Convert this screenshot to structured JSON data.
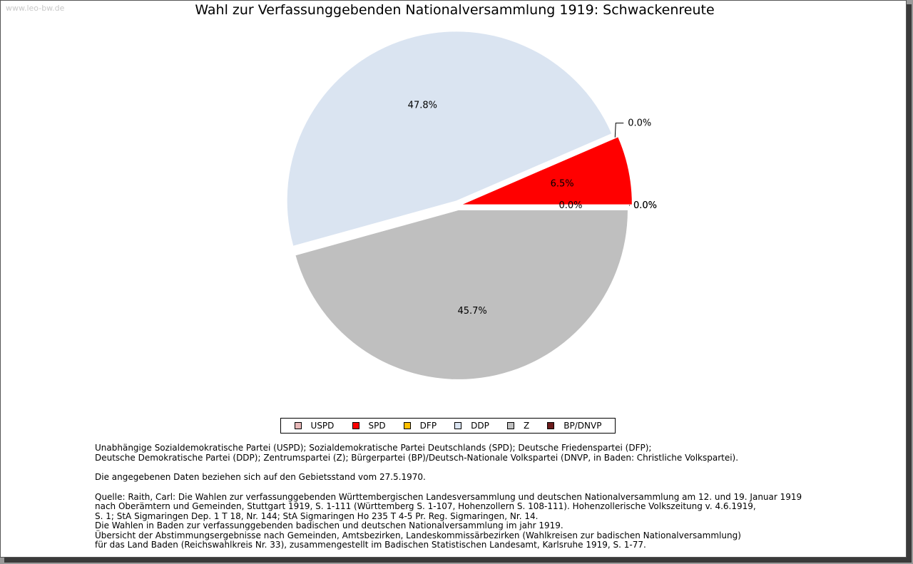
{
  "watermark": "www.leo-bw.de",
  "chart_data": {
    "type": "pie",
    "title": "Wahl zur Verfassunggebenden Nationalversammlung 1919: Schwackenreute",
    "slices": [
      {
        "name": "USPD",
        "value": 0.0,
        "label": "0.0%",
        "color": "#e8b8b8"
      },
      {
        "name": "SPD",
        "value": 6.5,
        "label": "6.5%",
        "color": "#ff0000"
      },
      {
        "name": "DFP",
        "value": 0.0,
        "label": "0.0%",
        "color": "#ffc000"
      },
      {
        "name": "DDP",
        "value": 47.8,
        "label": "47.8%",
        "color": "#dae4f1"
      },
      {
        "name": "Z",
        "value": 45.7,
        "label": "45.7%",
        "color": "#bfbfbf"
      },
      {
        "name": "BP/DNVP",
        "value": 0.0,
        "label": "0.0%",
        "color": "#6b1c1c"
      }
    ],
    "legend_position": "bottom"
  },
  "notes": {
    "line1": "Unabhängige Sozialdemokratische Partei (USPD); Sozialdemokratische Partei Deutschlands (SPD); Deutsche Friedenspartei (DFP);",
    "line2": "Deutsche Demokratische Partei (DDP); Zentrumspartei (Z); Bürgerpartei (BP)/Deutsch-Nationale Volkspartei (DNVP, in Baden: Christliche Volkspartei).",
    "line3": "Die angegebenen Daten beziehen sich auf den Gebietsstand vom 27.5.1970.",
    "line4": "Quelle: Raith, Carl: Die Wahlen zur verfassunggebenden Württembergischen Landesversammlung und deutschen Nationalversammlung am 12. und 19. Januar 1919",
    "line5": "nach Oberämtern und Gemeinden, Stuttgart 1919, S. 1-111 (Württemberg S. 1-107, Hohenzollern S. 108-111). Hohenzollerische Volkszeitung v. 4.6.1919,",
    "line6": "S. 1; StA Sigmaringen Dep. 1 T 18, Nr. 144; StA Sigmaringen Ho 235 T 4-5 Pr. Reg. Sigmaringen, Nr. 14.",
    "line7": "Die Wahlen in Baden zur verfassunggebenden badischen und deutschen Nationalversammlung im jahr 1919.",
    "line8": "Übersicht der Abstimmungsergebnisse nach Gemeinden, Amtsbezirken, Landeskommissärbezirken (Wahlkreisen zur badischen Nationalversammlung)",
    "line9": "für das Land Baden (Reichswahlkreis Nr. 33), zusammengestellt im Badischen Statistischen Landesamt, Karlsruhe 1919, S. 1-77."
  }
}
